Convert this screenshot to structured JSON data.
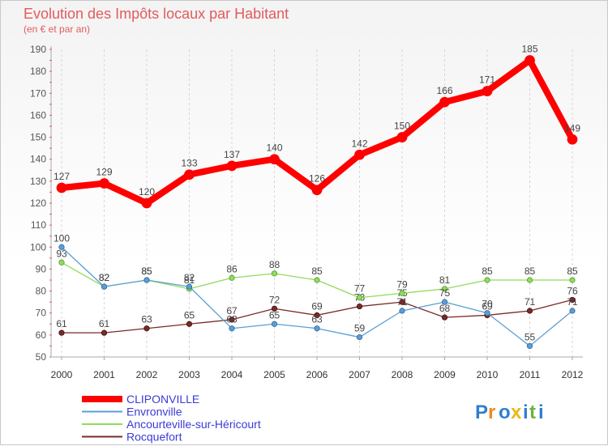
{
  "chart_data": {
    "type": "line",
    "title": "Evolution des Impôts locaux par Habitant",
    "subtitle": "(en € et par an)",
    "xlabel": "",
    "ylabel": "",
    "categories": [
      "2000",
      "2001",
      "2002",
      "2003",
      "2004",
      "2005",
      "2006",
      "2007",
      "2008",
      "2009",
      "2010",
      "2011",
      "2012"
    ],
    "ylim": [
      50,
      190
    ],
    "yticks": [
      50,
      60,
      70,
      80,
      90,
      100,
      110,
      120,
      130,
      140,
      150,
      160,
      170,
      180,
      190
    ],
    "grid": "vertical",
    "legend": "bottom-left",
    "series": [
      {
        "name": "CLIPONVILLE",
        "color": "#ff0000",
        "values": [
          127,
          129,
          120,
          133,
          137,
          140,
          126,
          142,
          150,
          166,
          171,
          185,
          149
        ]
      },
      {
        "name": "Envronville",
        "color": "#5a9fd4",
        "values": [
          100,
          82,
          85,
          82,
          63,
          65,
          63,
          59,
          71,
          75,
          70,
          55,
          71
        ]
      },
      {
        "name": "Ancourteville-sur-Héricourt",
        "color": "#8fdc5a",
        "values": [
          93,
          82,
          85,
          81,
          86,
          88,
          85,
          77,
          79,
          81,
          85,
          85,
          85
        ]
      },
      {
        "name": "Rocquefort",
        "color": "#7a2a2a",
        "values": [
          61,
          61,
          63,
          65,
          67,
          72,
          69,
          73,
          75,
          68,
          69,
          71,
          76
        ]
      }
    ]
  },
  "logo": {
    "text": "Proxiti"
  }
}
